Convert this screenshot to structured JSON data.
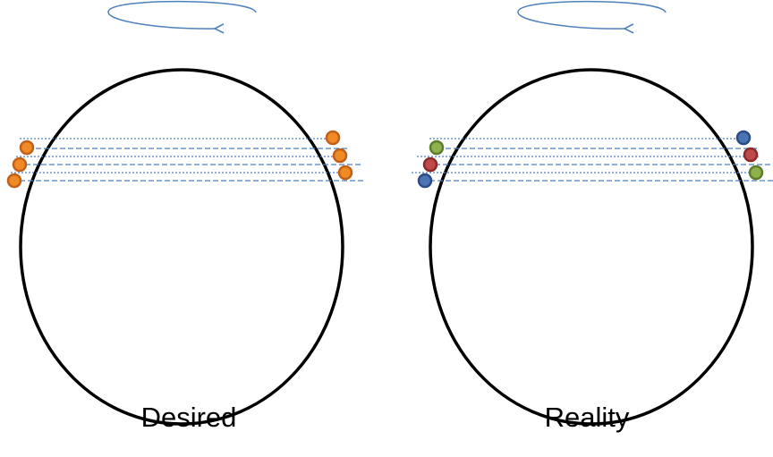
{
  "panels": [
    {
      "id": "desired",
      "caption": "Desired",
      "left_balls": [
        "orange",
        "orange",
        "orange"
      ],
      "right_balls": [
        "orange",
        "orange",
        "orange"
      ]
    },
    {
      "id": "reality",
      "caption": "Reality",
      "left_balls": [
        "green",
        "red",
        "blue"
      ],
      "right_balls": [
        "blue",
        "red",
        "green"
      ]
    }
  ],
  "colors": {
    "circle": "#000000",
    "rotation_arrow": "#4f81bd",
    "guide_line": "#4f81bd",
    "orange": "#f08a24",
    "orange_stroke": "#c0601a",
    "green": "#8eb04d",
    "green_stroke": "#5e7d2c",
    "red": "#bf4a4a",
    "red_stroke": "#8c2a2a",
    "blue": "#4a74b4",
    "blue_stroke": "#2b4c85"
  }
}
